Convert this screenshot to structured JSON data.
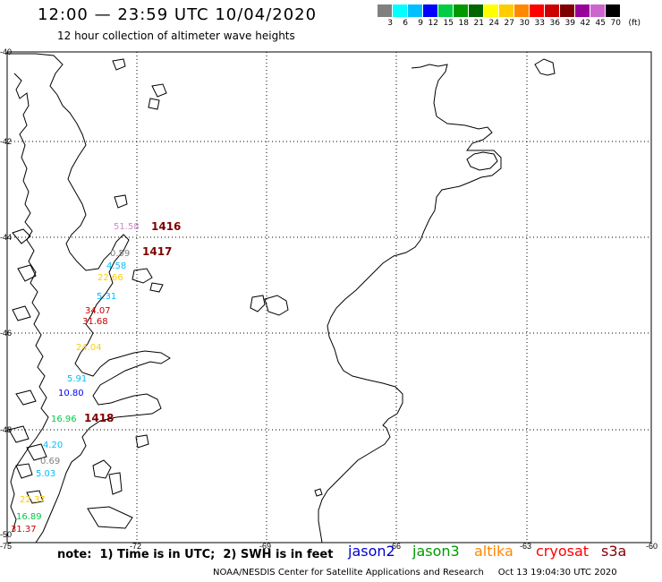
{
  "header": {
    "title": "12:00 — 23:59 UTC 10/04/2020",
    "subtitle": "12 hour collection of altimeter wave heights"
  },
  "color_scale": {
    "unit": "(ft)",
    "bins": [
      {
        "label": "3",
        "color": "#808080"
      },
      {
        "label": "6",
        "color": "#00ffff"
      },
      {
        "label": "9",
        "color": "#00bfff"
      },
      {
        "label": "12",
        "color": "#0000ff"
      },
      {
        "label": "15",
        "color": "#00cc44"
      },
      {
        "label": "18",
        "color": "#009900"
      },
      {
        "label": "21",
        "color": "#006600"
      },
      {
        "label": "24",
        "color": "#ffff00"
      },
      {
        "label": "27",
        "color": "#ffcc00"
      },
      {
        "label": "30",
        "color": "#ff8800"
      },
      {
        "label": "33",
        "color": "#ff0000"
      },
      {
        "label": "36",
        "color": "#cc0000"
      },
      {
        "label": "39",
        "color": "#800000"
      },
      {
        "label": "42",
        "color": "#990099"
      },
      {
        "label": "45",
        "color": "#cc66cc"
      },
      {
        "label": "70",
        "color": "#000000"
      }
    ]
  },
  "axes": {
    "lat_labels": [
      "-40",
      "-42",
      "-44",
      "-46",
      "-48",
      "-50"
    ],
    "lon_labels": [
      "-75",
      "-72",
      "-69",
      "-66",
      "-63",
      "-60"
    ]
  },
  "wave_labels": [
    {
      "text": "51.58",
      "color": "#cc88cc"
    },
    {
      "text": "0.59",
      "color": "#808080"
    },
    {
      "text": "4.58",
      "color": "#00bfff"
    },
    {
      "text": "22.66",
      "color": "#ffcc00"
    },
    {
      "text": "5.31",
      "color": "#00bfff"
    },
    {
      "text": "34.07",
      "color": "#cc0000"
    },
    {
      "text": "31.68",
      "color": "#cc0000"
    },
    {
      "text": "24.04",
      "color": "#ffcc00"
    },
    {
      "text": "5.91",
      "color": "#00bfff"
    },
    {
      "text": "10.80",
      "color": "#0000ff"
    },
    {
      "text": "16.96",
      "color": "#00cc44"
    },
    {
      "text": "4.20",
      "color": "#00bfff"
    },
    {
      "text": "0.69",
      "color": "#808080"
    },
    {
      "text": "5.03",
      "color": "#00bfff"
    },
    {
      "text": "22.37",
      "color": "#ffcc00"
    },
    {
      "text": "16.89",
      "color": "#00cc44"
    },
    {
      "text": "31.37",
      "color": "#cc0000"
    }
  ],
  "pass_labels": [
    {
      "text": "1416",
      "color": "#800000"
    },
    {
      "text": "1417",
      "color": "#800000"
    },
    {
      "text": "1418",
      "color": "#800000"
    }
  ],
  "note": "note:  1) Time is in UTC;  2) SWH is in feet",
  "satellites": [
    {
      "name": "jason2",
      "color": "#0000cc"
    },
    {
      "name": "jason3",
      "color": "#009900"
    },
    {
      "name": "altika",
      "color": "#ff8800"
    },
    {
      "name": "cryosat",
      "color": "#ff0000"
    },
    {
      "name": "s3a",
      "color": "#800000"
    }
  ],
  "footer": "NOAA/NESDIS Center for Satellite Applications and Research     Oct 13 19:04:30 UTC 2020"
}
